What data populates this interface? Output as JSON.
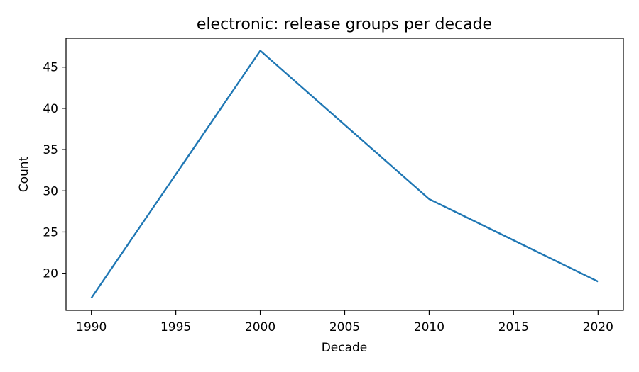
{
  "chart_data": {
    "type": "line",
    "title": "electronic: release groups per decade",
    "xlabel": "Decade",
    "ylabel": "Count",
    "x": [
      1990,
      2000,
      2010,
      2020
    ],
    "series": [
      {
        "values": [
          17,
          47,
          29,
          19
        ],
        "color": "#1f77b4"
      }
    ],
    "xlim": [
      1988.5,
      2021.5
    ],
    "ylim": [
      15.5,
      48.5
    ],
    "xticks": [
      1990,
      1995,
      2000,
      2005,
      2010,
      2015,
      2020
    ],
    "yticks": [
      20,
      25,
      30,
      35,
      40,
      45
    ],
    "grid": false,
    "legend": "none"
  }
}
